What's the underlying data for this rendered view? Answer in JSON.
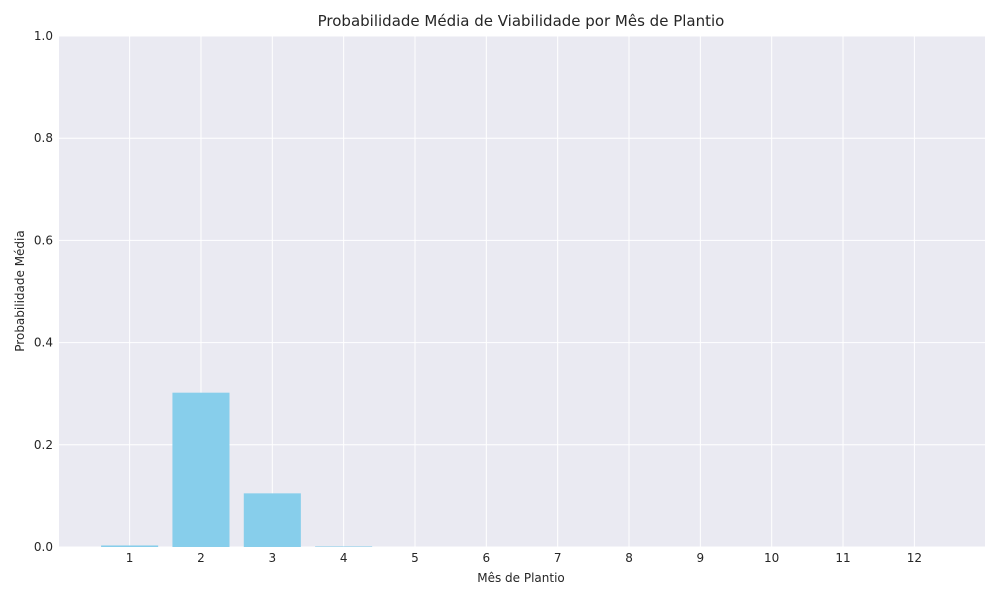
{
  "chart_data": {
    "type": "bar",
    "title": "Probabilidade Média de Viabilidade por Mês de Plantio",
    "xlabel": "Mês de Plantio",
    "ylabel": "Probabilidade Média",
    "categories": [
      "1",
      "2",
      "3",
      "4",
      "5",
      "6",
      "7",
      "8",
      "9",
      "10",
      "11",
      "12"
    ],
    "values": [
      0.003,
      0.302,
      0.105,
      0.001,
      0.0,
      0.0,
      0.0,
      0.0,
      0.0,
      0.0,
      0.0,
      0.0
    ],
    "ylim": [
      0,
      1.0
    ],
    "yticks": [
      "0.0",
      "0.2",
      "0.4",
      "0.6",
      "0.8",
      "1.0"
    ],
    "grid": true,
    "colors": {
      "bar": "#87ceeb",
      "plot_background": "#eaeaf2",
      "grid": "#ffffff"
    }
  }
}
